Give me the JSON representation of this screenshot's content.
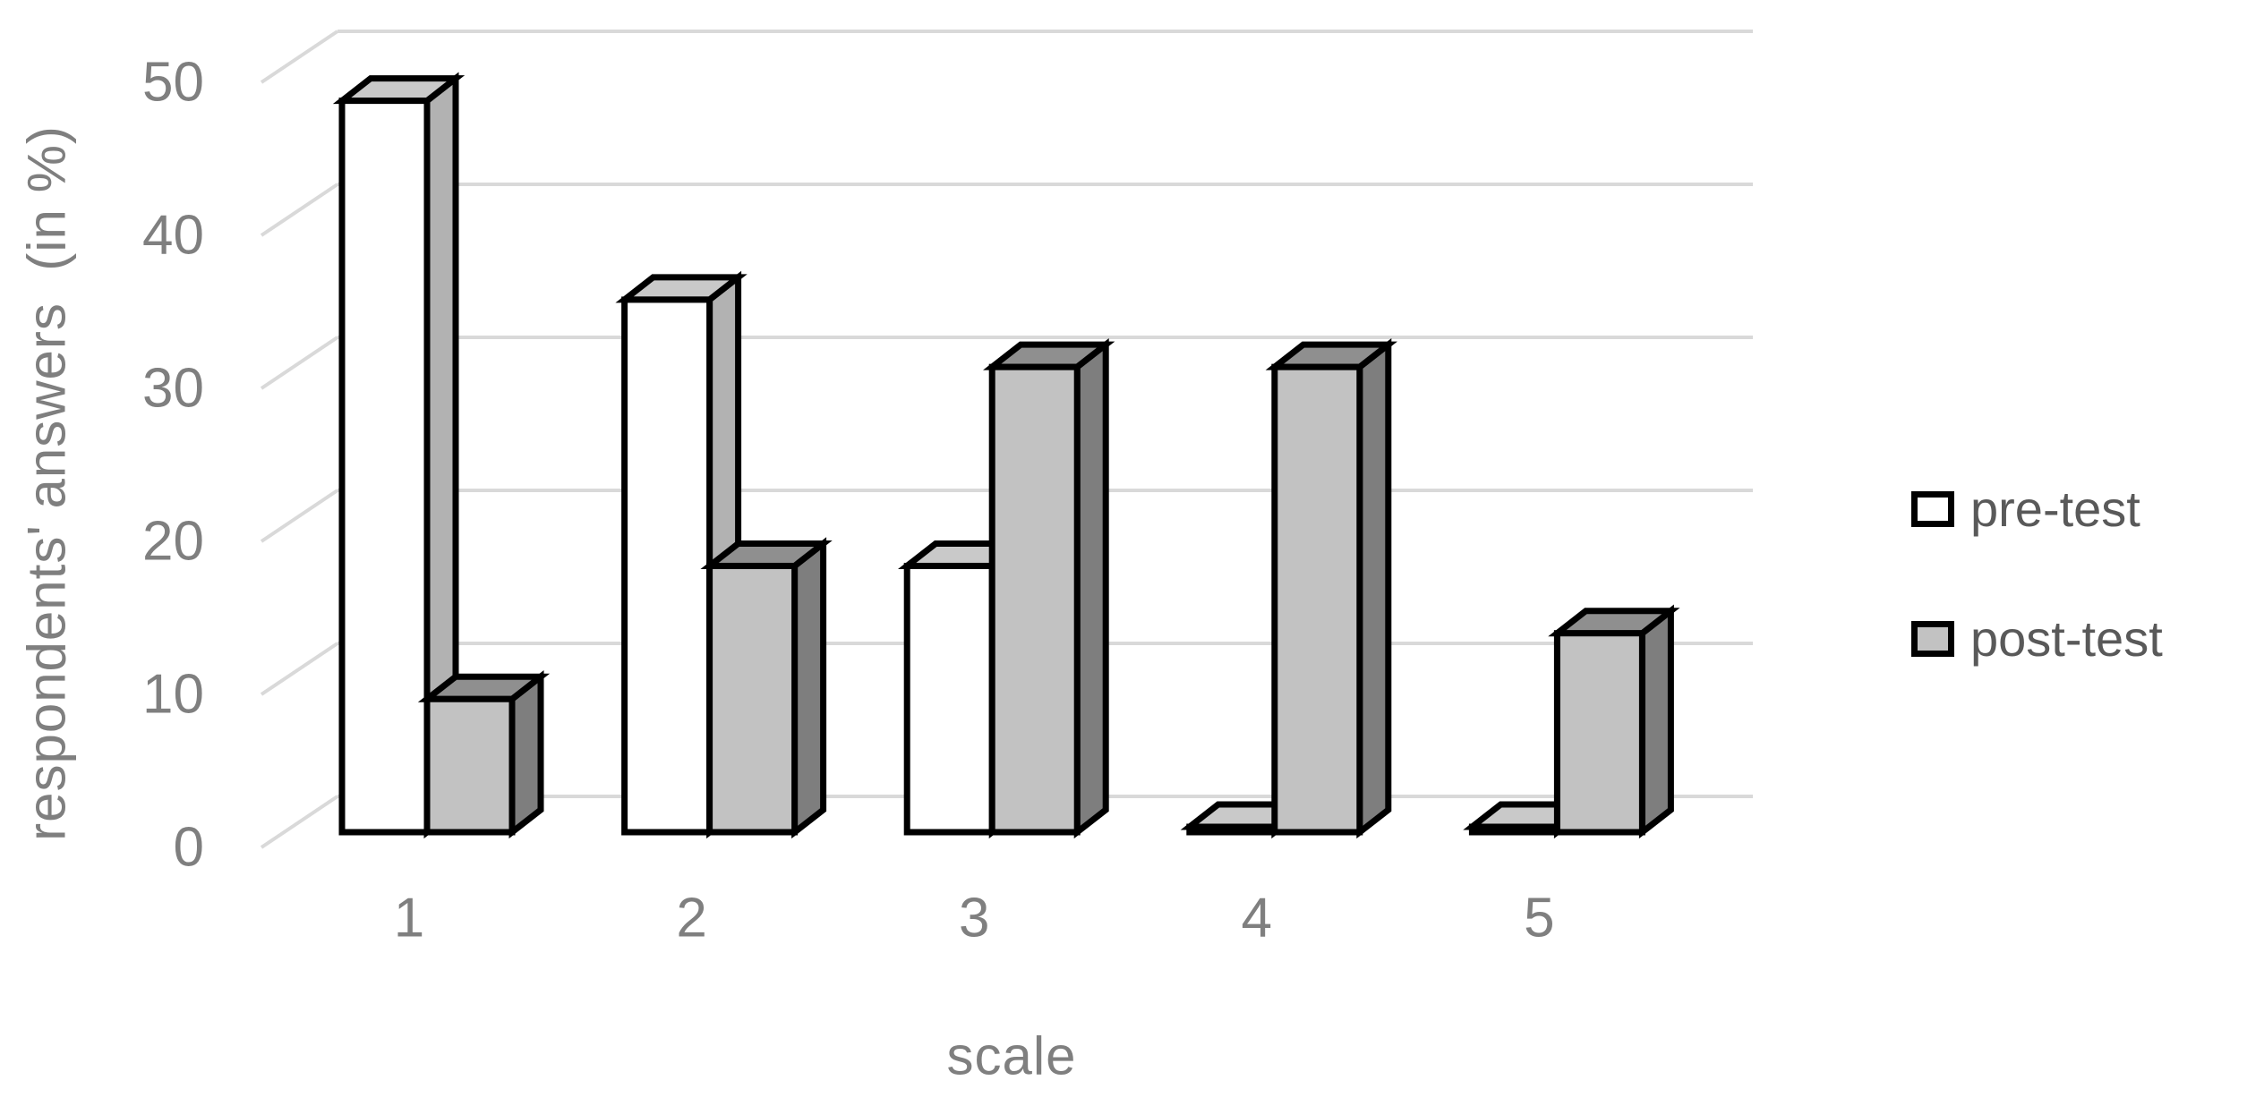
{
  "chart_data": {
    "type": "bar",
    "subtype": "3d-clustered-column",
    "title": "",
    "xlabel": "scale",
    "ylabel": "respondents' answers  (in %)",
    "categories": [
      "1",
      "2",
      "3",
      "4",
      "5"
    ],
    "series": [
      {
        "name": "pre-test",
        "values": [
          47.8,
          34.8,
          17.4,
          0,
          0
        ],
        "front_color": "#ffffff",
        "top_color": "#c9c9c9",
        "side_color": "#b2b2b2"
      },
      {
        "name": "post-test",
        "values": [
          8.7,
          17.4,
          30.4,
          30.4,
          13.0
        ],
        "front_color": "#c2c2c2",
        "top_color": "#8f8f8f",
        "side_color": "#7e7e7e"
      }
    ],
    "ylim": [
      0,
      50
    ],
    "yticks": [
      0,
      10,
      20,
      30,
      40,
      50
    ],
    "grid": true,
    "legend_position": "right",
    "colors": {
      "gridline": "#d9d9d9",
      "axis_text": "#7f7f7f",
      "legend_text": "#595959",
      "bar_outline": "#000000",
      "background": "#ffffff"
    }
  }
}
